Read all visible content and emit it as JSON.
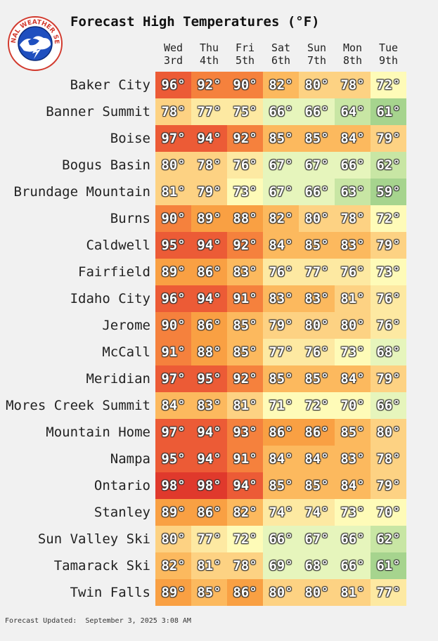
{
  "logo": {
    "top_text": "NATIONAL WEATHER SERVICE"
  },
  "chart_data": {
    "type": "table",
    "title": "Forecast High Temperatures (°F)",
    "columns": [
      {
        "day": "Wed",
        "date": "3rd"
      },
      {
        "day": "Thu",
        "date": "4th"
      },
      {
        "day": "Fri",
        "date": "5th"
      },
      {
        "day": "Sat",
        "date": "6th"
      },
      {
        "day": "Sun",
        "date": "7th"
      },
      {
        "day": "Mon",
        "date": "8th"
      },
      {
        "day": "Tue",
        "date": "9th"
      }
    ],
    "unit": "°",
    "rows": [
      {
        "location": "Baker City",
        "values": [
          96,
          92,
          90,
          82,
          80,
          78,
          72
        ]
      },
      {
        "location": "Banner Summit",
        "values": [
          78,
          77,
          75,
          66,
          66,
          64,
          61
        ]
      },
      {
        "location": "Boise",
        "values": [
          97,
          94,
          92,
          85,
          85,
          84,
          79
        ]
      },
      {
        "location": "Bogus Basin",
        "values": [
          80,
          78,
          76,
          67,
          67,
          66,
          62
        ]
      },
      {
        "location": "Brundage Mountain",
        "values": [
          81,
          79,
          73,
          67,
          66,
          63,
          59
        ]
      },
      {
        "location": "Burns",
        "values": [
          90,
          89,
          88,
          82,
          80,
          78,
          72
        ]
      },
      {
        "location": "Caldwell",
        "values": [
          95,
          94,
          92,
          84,
          85,
          83,
          79
        ]
      },
      {
        "location": "Fairfield",
        "values": [
          89,
          86,
          83,
          76,
          77,
          76,
          73
        ]
      },
      {
        "location": "Idaho City",
        "values": [
          96,
          94,
          91,
          83,
          83,
          81,
          76
        ]
      },
      {
        "location": "Jerome",
        "values": [
          90,
          86,
          85,
          79,
          80,
          80,
          76
        ]
      },
      {
        "location": "McCall",
        "values": [
          91,
          88,
          85,
          77,
          76,
          73,
          68
        ]
      },
      {
        "location": "Meridian",
        "values": [
          97,
          95,
          92,
          85,
          85,
          84,
          79
        ]
      },
      {
        "location": "Mores Creek Summit",
        "values": [
          84,
          83,
          81,
          71,
          72,
          70,
          66
        ]
      },
      {
        "location": "Mountain Home",
        "values": [
          97,
          94,
          93,
          86,
          86,
          85,
          80
        ]
      },
      {
        "location": "Nampa",
        "values": [
          95,
          94,
          91,
          84,
          84,
          83,
          78
        ]
      },
      {
        "location": "Ontario",
        "values": [
          98,
          98,
          94,
          85,
          85,
          84,
          79
        ]
      },
      {
        "location": "Stanley",
        "values": [
          89,
          86,
          82,
          74,
          74,
          73,
          70
        ]
      },
      {
        "location": "Sun Valley Ski",
        "values": [
          80,
          77,
          72,
          66,
          67,
          66,
          62
        ]
      },
      {
        "location": "Tamarack Ski",
        "values": [
          82,
          81,
          78,
          69,
          68,
          66,
          61
        ]
      },
      {
        "location": "Twin Falls",
        "values": [
          89,
          85,
          86,
          80,
          80,
          81,
          77
        ]
      }
    ],
    "color_scale": [
      {
        "temp": 59,
        "color": "#a6d48e"
      },
      {
        "temp": 62,
        "color": "#c8e6a4"
      },
      {
        "temp": 66,
        "color": "#e6f5bc"
      },
      {
        "temp": 70,
        "color": "#fefbb8"
      },
      {
        "temp": 74,
        "color": "#fde9a2"
      },
      {
        "temp": 78,
        "color": "#fdd283"
      },
      {
        "temp": 82,
        "color": "#fcb95e"
      },
      {
        "temp": 86,
        "color": "#f9a043"
      },
      {
        "temp": 90,
        "color": "#f5813d"
      },
      {
        "temp": 94,
        "color": "#ec5b36"
      },
      {
        "temp": 98,
        "color": "#e0392c"
      }
    ]
  },
  "footer": {
    "label": "Forecast Updated:",
    "value": "September 3, 2025 3:08 AM"
  }
}
